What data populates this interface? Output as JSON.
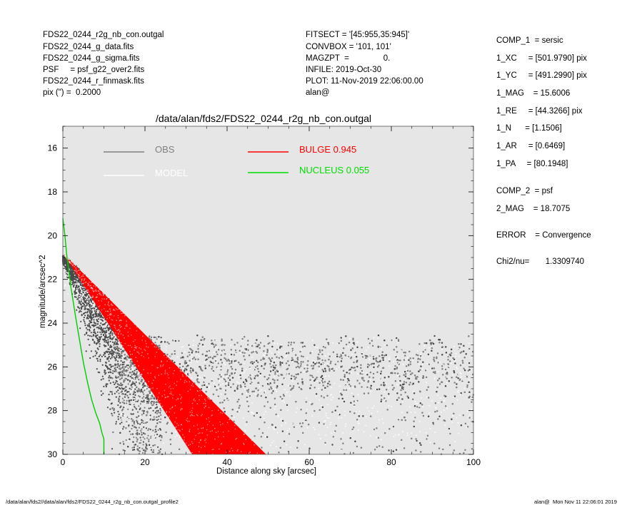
{
  "header_left": [
    "FDS22_0244_r2g_nb_con.outgal",
    "FDS22_0244_g_data.fits",
    "FDS22_0244_g_sigma.fits",
    "PSF     = psf_g22_over2.fits",
    "FDS22_0244_r_finmask.fits",
    "pix (\") =  0.2000"
  ],
  "header_mid": [
    "FITSECT = '[45:955,35:945]'",
    "CONVBOX = '101, 101'",
    "MAGZPT  =               0.",
    "INFILE: 2019-Oct-30",
    "PLOT: 11-Nov-2019 22:06:00.00",
    "alan@"
  ],
  "params": [
    "COMP_1  = sersic",
    "1_XC     = [501.9790] pix",
    "1_YC     = [491.2990] pix",
    "1_MAG    = 15.6006",
    "1_RE     = [44.3266] pix",
    "1_N      = [1.1506]",
    "1_AR     = [0.6469]",
    "1_PA     = [80.1948]",
    "COMP_2  = psf",
    "2_MAG    = 18.7075",
    "ERROR    = Convergence",
    "Chi2/nu=       1.3309740"
  ],
  "footer_left": "/data/alan/fds2//data/alan/fds2/FDS22_0244_r2g_nb_con.outgal_profile2",
  "footer_right": "alan@  Mon Nov 11 22:06:01 2019",
  "chart_data": {
    "type": "scatter",
    "title": "/data/alan/fds2/FDS22_0244_r2g_nb_con.outgal",
    "xlabel": "Distance along sky [arcsec]",
    "ylabel": "magnitude/arcsec^2",
    "xlim": [
      0,
      100
    ],
    "ylim": [
      30,
      15
    ],
    "y_inverted": true,
    "x_ticks": [
      0,
      20,
      40,
      60,
      80,
      100
    ],
    "y_ticks": [
      16,
      18,
      20,
      22,
      24,
      26,
      28,
      30
    ],
    "grid": false,
    "legend_placement": "top-left",
    "background": "#e6e6e6",
    "legend": [
      {
        "name": "OBS",
        "color": "#808080"
      },
      {
        "name": "MODEL",
        "color": "#ffffff"
      },
      {
        "name": "BULGE  0.945",
        "color": "#ff0000"
      },
      {
        "name": "NUCLEUS  0.055",
        "color": "#00dd00"
      }
    ],
    "nucleus_curve": {
      "x": [
        0,
        0.5,
        1,
        2,
        3,
        4,
        5,
        6,
        7,
        8,
        9,
        9.5,
        10,
        10,
        10
      ],
      "y": [
        19.2,
        20.0,
        21.0,
        22.4,
        23.6,
        24.7,
        25.8,
        26.7,
        27.5,
        28.1,
        28.6,
        29.0,
        29.3,
        29.7,
        30.0
      ]
    },
    "bulge_band": {
      "upper_edge": {
        "x": [
          0,
          49.5
        ],
        "y": [
          20.8,
          30
        ]
      },
      "lower_edge": {
        "x": [
          0,
          31.5
        ],
        "y": [
          20.8,
          30
        ]
      }
    },
    "obs_envelope": {
      "outer_profile": {
        "x": [
          0,
          1,
          3,
          6,
          10,
          14,
          18,
          20
        ],
        "y": [
          20.9,
          21.0,
          21.3,
          21.9,
          22.6,
          23.4,
          24.2,
          24.5
        ]
      },
      "sky_level_range": [
        24.6,
        30.0
      ],
      "sky_center": 26.0
    }
  },
  "colors": {
    "obs": "#808080",
    "obs_dark": "#4a4a4a",
    "model": "#ffffff",
    "bulge": "#ff0000",
    "nucleus": "#00cc00",
    "bg": "#e6e6e6"
  }
}
